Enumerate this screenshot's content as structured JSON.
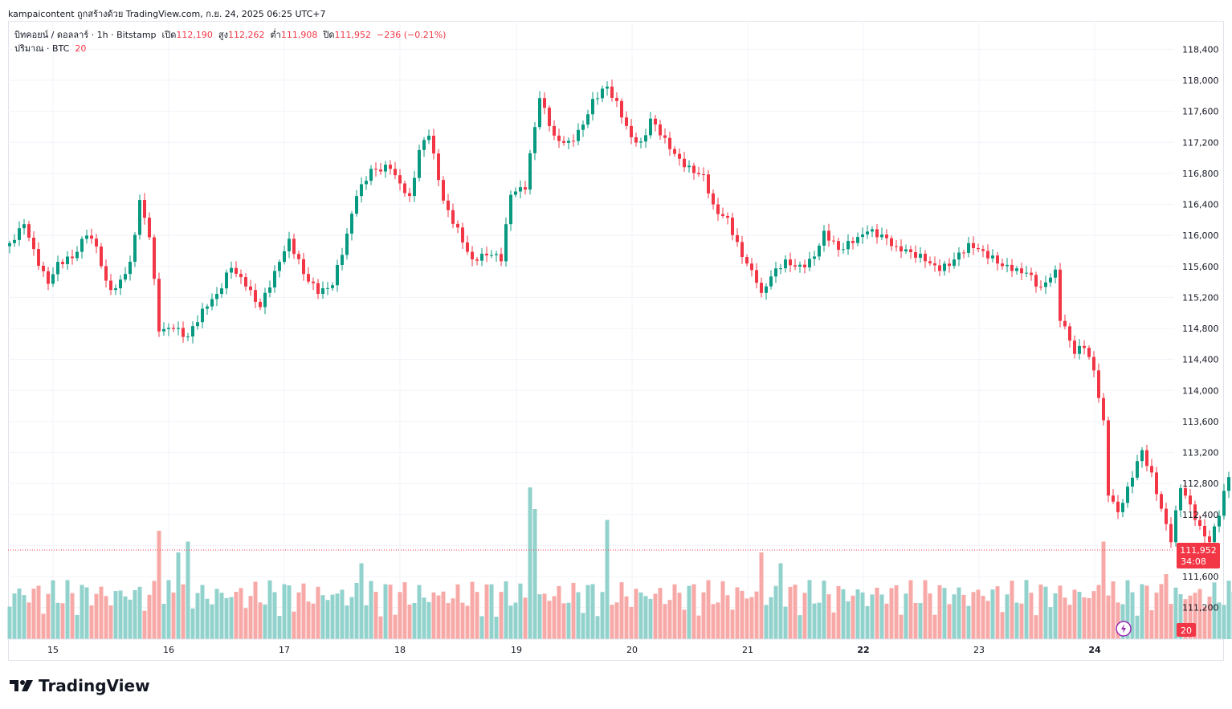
{
  "header": {
    "attribution": "kampaicontent ถูกสร้างด้วย TradingView.com, ก.ย. 24, 2025 06:25 UTC+7"
  },
  "legend": {
    "symbol": "บิทคอยน์ / ดอลลาร์ · 1h · Bitstamp",
    "open_label": "เปิด",
    "open_value": "112,190",
    "high_label": "สูง",
    "high_value": "112,262",
    "low_label": "ต่ำ",
    "low_value": "111,908",
    "close_label": "ปิด",
    "close_value": "111,952",
    "change": "−236 (−0.21%)",
    "volume_label": "ปริมาณ · BTC",
    "volume_value": "20"
  },
  "price_badge": {
    "price": "111,952",
    "countdown": "34:08"
  },
  "volume_badge": "20",
  "branding": {
    "logo_text": "TradingView"
  },
  "colors": {
    "up": "#089981",
    "down": "#f23645",
    "up_vol": "#92d2cc",
    "down_vol": "#f7a9a7",
    "grid": "#f0f3fa"
  },
  "chart_data": {
    "type": "candlestick",
    "title": "บิทคอยน์ / ดอลลาร์ · 1h · Bitstamp",
    "y_ticks": [
      111200,
      111600,
      112000,
      112400,
      112800,
      113200,
      113600,
      114000,
      114400,
      114800,
      115200,
      115600,
      116000,
      116400,
      116800,
      117200,
      117600,
      118000,
      118400
    ],
    "y_tick_labels": [
      "111,200",
      "111,600",
      "",
      "112,400",
      "112,800",
      "113,200",
      "113,600",
      "114,000",
      "114,400",
      "114,800",
      "115,200",
      "115,600",
      "116,000",
      "116,400",
      "116,800",
      "117,200",
      "117,600",
      "118,000",
      "118,400"
    ],
    "ylim": [
      110800,
      118700
    ],
    "x_labels": [
      "15",
      "16",
      "17",
      "18",
      "19",
      "20",
      "21",
      "22",
      "23",
      "24"
    ],
    "last_price": 111952,
    "anchors": [
      [
        0,
        115900
      ],
      [
        3,
        116200
      ],
      [
        5,
        115800
      ],
      [
        8,
        115350
      ],
      [
        10,
        115600
      ],
      [
        13,
        115700
      ],
      [
        16,
        116050
      ],
      [
        18,
        115900
      ],
      [
        20,
        115400
      ],
      [
        22,
        115300
      ],
      [
        25,
        115600
      ],
      [
        27,
        116400
      ],
      [
        29,
        116000
      ],
      [
        31,
        114800
      ],
      [
        34,
        114850
      ],
      [
        37,
        114700
      ],
      [
        40,
        115000
      ],
      [
        43,
        115200
      ],
      [
        46,
        115600
      ],
      [
        49,
        115400
      ],
      [
        52,
        115100
      ],
      [
        55,
        115500
      ],
      [
        58,
        115900
      ],
      [
        61,
        115500
      ],
      [
        64,
        115300
      ],
      [
        67,
        115400
      ],
      [
        70,
        116000
      ],
      [
        72,
        116500
      ],
      [
        75,
        116800
      ],
      [
        79,
        116900
      ],
      [
        83,
        116500
      ],
      [
        85,
        117100
      ],
      [
        87,
        117300
      ],
      [
        90,
        116400
      ],
      [
        93,
        116050
      ],
      [
        96,
        115700
      ],
      [
        99,
        115800
      ],
      [
        102,
        115700
      ],
      [
        104,
        116500
      ],
      [
        107,
        116600
      ],
      [
        110,
        117800
      ],
      [
        113,
        117300
      ],
      [
        116,
        117200
      ],
      [
        119,
        117400
      ],
      [
        121,
        117700
      ],
      [
        124,
        117900
      ],
      [
        126,
        117700
      ],
      [
        129,
        117300
      ],
      [
        131,
        117200
      ],
      [
        133,
        117500
      ],
      [
        135,
        117300
      ],
      [
        138,
        117000
      ],
      [
        141,
        116850
      ],
      [
        144,
        116800
      ],
      [
        146,
        116400
      ],
      [
        149,
        116200
      ],
      [
        152,
        115700
      ],
      [
        155,
        115400
      ],
      [
        156,
        115200
      ],
      [
        158,
        115500
      ],
      [
        161,
        115700
      ],
      [
        164,
        115600
      ],
      [
        167,
        115700
      ],
      [
        169,
        116000
      ],
      [
        172,
        115800
      ],
      [
        175,
        115950
      ],
      [
        178,
        116100
      ],
      [
        181,
        116000
      ],
      [
        184,
        115800
      ],
      [
        187,
        115750
      ],
      [
        190,
        115700
      ],
      [
        193,
        115600
      ],
      [
        196,
        115700
      ],
      [
        199,
        115850
      ],
      [
        202,
        115750
      ],
      [
        205,
        115650
      ],
      [
        208,
        115600
      ],
      [
        211,
        115550
      ],
      [
        214,
        115300
      ],
      [
        217,
        115500
      ],
      [
        218,
        114900
      ],
      [
        221,
        114500
      ],
      [
        223,
        114600
      ],
      [
        225,
        114300
      ],
      [
        227,
        113600
      ],
      [
        228,
        112700
      ],
      [
        230,
        112400
      ],
      [
        232,
        112700
      ],
      [
        235,
        113200
      ],
      [
        237,
        112900
      ],
      [
        239,
        112500
      ],
      [
        241,
        112100
      ],
      [
        243,
        112800
      ],
      [
        245,
        112500
      ],
      [
        247,
        112200
      ],
      [
        249,
        112000
      ],
      [
        251,
        112400
      ],
      [
        253,
        112900
      ],
      [
        255,
        113100
      ],
      [
        257,
        113000
      ],
      [
        259,
        112900
      ],
      [
        262,
        112200
      ],
      [
        263,
        111900
      ],
      [
        265,
        111800
      ],
      [
        266,
        112100
      ],
      [
        268,
        111952
      ]
    ],
    "volume_spikes": {
      "31": 10,
      "35": 8,
      "37": 9,
      "73": 7,
      "108": 14,
      "109": 12,
      "124": 11,
      "156": 8,
      "160": 7,
      "226": 5,
      "227": 9,
      "240": 6
    }
  }
}
